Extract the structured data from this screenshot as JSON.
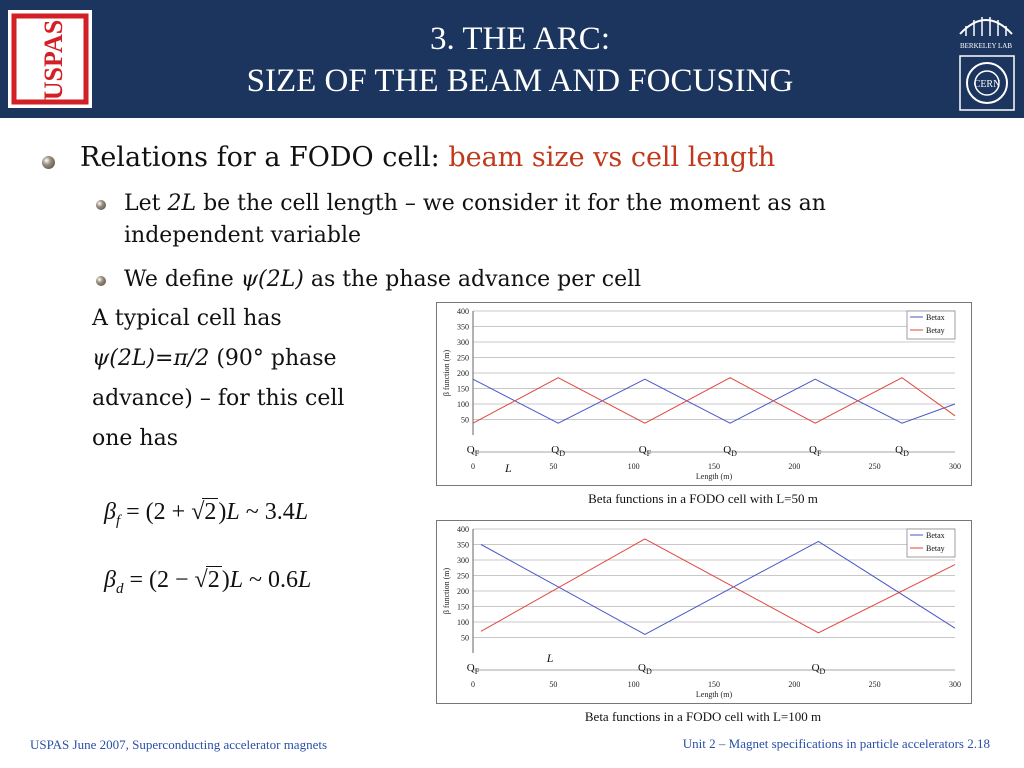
{
  "header": {
    "title_line1": "3. THE ARC:",
    "title_line2": "SIZE OF THE BEAM AND FOCUSING",
    "logo_left_text": "USPAS",
    "logo_berkeley_text": "BERKELEY LAB",
    "logo_cern_text": "CERN",
    "bg_color": "#1c355e"
  },
  "body": {
    "bullet1_prefix": "Relations for a FODO cell: ",
    "bullet1_highlight": "beam size vs cell length",
    "bullet2_a": "Let ",
    "bullet2_var": "2L",
    "bullet2_b": " be the cell length – we consider it for the moment as an",
    "bullet2_line2": "independent variable",
    "bullet3_a": "We define ",
    "bullet3_var": "ψ(2L)",
    "bullet3_b": " as the phase advance per cell",
    "text_line1": "A typical cell has",
    "text_line2_var": "ψ(2L)=π/2",
    "text_line2_b": " (90° phase",
    "text_line3": "advance) – for this cell",
    "text_line4": "one has",
    "eq1": {
      "beta": "β",
      "sub": "f",
      "rhs_a": "= (2 +",
      "sqrt_arg": "2",
      "rhs_b": ")",
      "L": "L",
      "approx": "~ 3.4",
      "L2": "L"
    },
    "eq2": {
      "beta": "β",
      "sub": "d",
      "rhs_a": "= (2 −",
      "sqrt_arg": "2",
      "rhs_b": ")",
      "L": "L",
      "approx": "~ 0.6",
      "L2": "L"
    },
    "highlight_color": "#c0391b"
  },
  "chart_data": [
    {
      "type": "line",
      "caption": "Beta functions in a FODO cell with L=50 m",
      "xlabel": "Length (m)",
      "ylabel": "β function (m)",
      "xlim": [
        0,
        300
      ],
      "ylim": [
        0,
        400
      ],
      "xticks": [
        0,
        50,
        100,
        150,
        200,
        250,
        300
      ],
      "yticks": [
        50,
        100,
        150,
        200,
        250,
        300,
        350,
        400
      ],
      "grid": true,
      "legend": "top-right",
      "magnets": [
        {
          "label": "Q",
          "sub": "F",
          "x": 0
        },
        {
          "label": "Q",
          "sub": "D",
          "x": 53
        },
        {
          "label": "Q",
          "sub": "F",
          "x": 107
        },
        {
          "label": "Q",
          "sub": "D",
          "x": 160
        },
        {
          "label": "Q",
          "sub": "F",
          "x": 213
        },
        {
          "label": "Q",
          "sub": "D",
          "x": 267
        }
      ],
      "cell_label": "L",
      "series": [
        {
          "name": "Betax",
          "color": "#4a57c8",
          "x": [
            0,
            53,
            107,
            160,
            213,
            267,
            300
          ],
          "y": [
            180,
            38,
            180,
            38,
            180,
            38,
            100
          ]
        },
        {
          "name": "Betay",
          "color": "#e0463c",
          "x": [
            0,
            53,
            107,
            160,
            213,
            267,
            300
          ],
          "y": [
            38,
            185,
            38,
            185,
            38,
            185,
            62
          ]
        }
      ]
    },
    {
      "type": "line",
      "caption": "Beta functions in a FODO cell with L=100 m",
      "xlabel": "Length (m)",
      "ylabel": "β function (m)",
      "xlim": [
        0,
        300
      ],
      "ylim": [
        0,
        400
      ],
      "xticks": [
        0,
        50,
        100,
        150,
        200,
        250,
        300
      ],
      "yticks": [
        50,
        100,
        150,
        200,
        250,
        300,
        350,
        400
      ],
      "grid": true,
      "legend": "top-right",
      "magnets": [
        {
          "label": "Q",
          "sub": "F",
          "x": 0
        },
        {
          "label": "Q",
          "sub": "D",
          "x": 107
        },
        {
          "label": "Q",
          "sub": "D",
          "x": 215
        }
      ],
      "cell_label": "L",
      "series": [
        {
          "name": "Betax",
          "color": "#4a57c8",
          "x": [
            5,
            107,
            215,
            300
          ],
          "y": [
            350,
            60,
            360,
            80
          ]
        },
        {
          "name": "Betay",
          "color": "#e0463c",
          "x": [
            5,
            107,
            215,
            300
          ],
          "y": [
            70,
            368,
            65,
            285
          ]
        }
      ]
    }
  ],
  "footer": {
    "left": "USPAS June  2007,  Superconducting accelerator magnets",
    "right": "Unit 2 – Magnet specifications in particle accelerators 2.18",
    "color": "#2a4fa8"
  }
}
